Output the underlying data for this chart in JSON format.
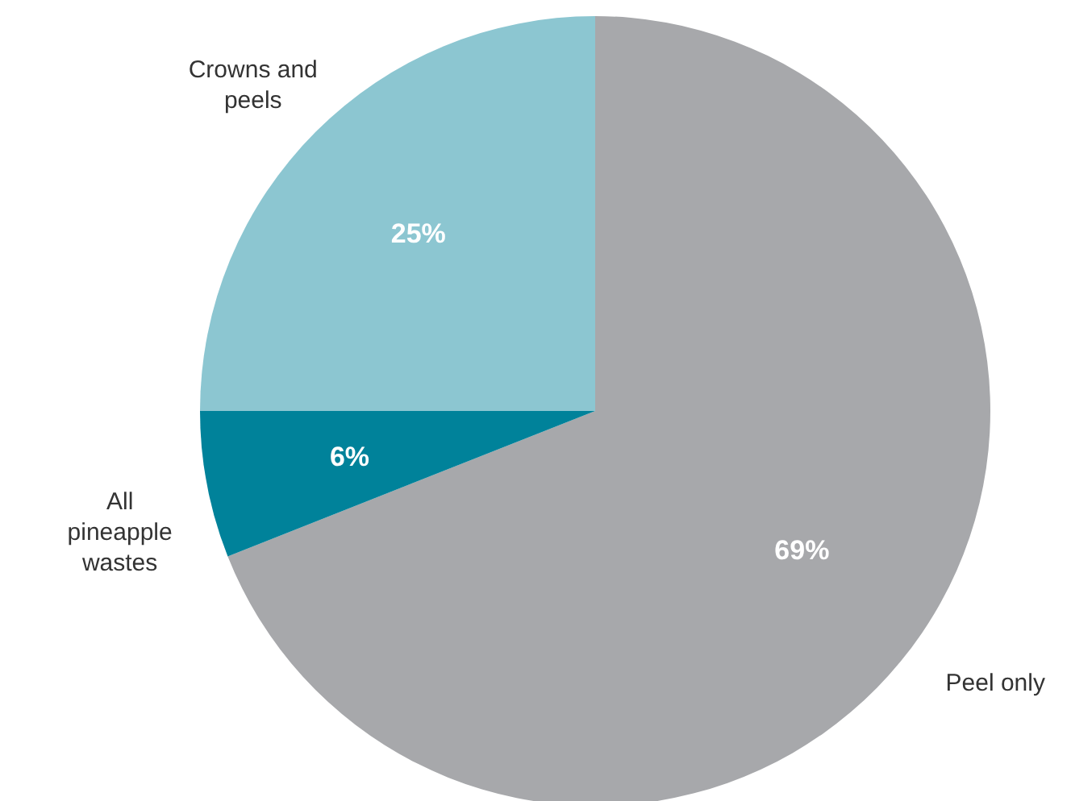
{
  "chart_data": {
    "type": "pie",
    "categories": [
      "Peel only",
      "All pineapple wastes",
      "Crowns and peels"
    ],
    "values": [
      69,
      6,
      25
    ],
    "colors": [
      "#a7a8ab",
      "#00829a",
      "#8cc6d1"
    ],
    "value_labels": [
      "69%",
      "6%",
      "25%"
    ]
  }
}
